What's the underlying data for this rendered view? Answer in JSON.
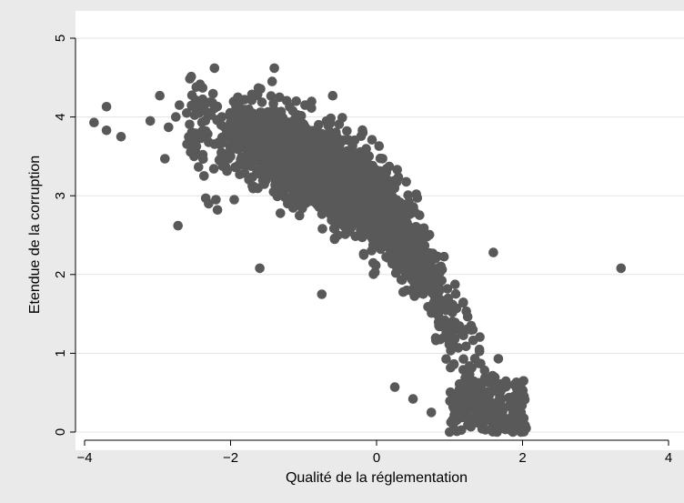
{
  "chart_data": {
    "type": "scatter",
    "xlabel": "Qualité de la réglementation",
    "ylabel": "Etendue de la corruption",
    "xlim": [
      -4,
      4
    ],
    "ylim": [
      0,
      5
    ],
    "xticks": [
      -4,
      -2,
      0,
      2,
      4
    ],
    "yticks": [
      0,
      1,
      2,
      3,
      4,
      5
    ],
    "xtick_labels": [
      "−4",
      "−2",
      "0",
      "2",
      "4"
    ],
    "ytick_labels": [
      "0",
      "1",
      "2",
      "3",
      "4",
      "5"
    ],
    "grid": "horizontal",
    "marker_color": "#595959",
    "series": [
      {
        "points": [
          [
            -3.87,
            3.93
          ],
          [
            -3.7,
            4.13
          ],
          [
            -3.7,
            3.83
          ],
          [
            -3.5,
            3.75
          ],
          [
            -3.1,
            3.95
          ],
          [
            -2.97,
            4.27
          ],
          [
            -2.9,
            3.47
          ],
          [
            -2.85,
            3.87
          ],
          [
            -2.75,
            4.0
          ],
          [
            -2.72,
            2.62
          ],
          [
            -2.7,
            4.15
          ],
          [
            -2.6,
            4.05
          ],
          [
            -2.5,
            3.5
          ],
          [
            -2.47,
            4.38
          ],
          [
            -2.43,
            4.05
          ],
          [
            -2.3,
            2.9
          ],
          [
            -2.22,
            4.62
          ],
          [
            -2.2,
            2.95
          ],
          [
            -2.18,
            2.82
          ],
          [
            -2.12,
            4.0
          ],
          [
            -2.0,
            3.5
          ],
          [
            -1.95,
            2.95
          ],
          [
            -1.9,
            4.25
          ],
          [
            -1.6,
            2.08
          ],
          [
            -1.4,
            4.62
          ],
          [
            -1.43,
            4.45
          ],
          [
            -1.33,
            4.25
          ],
          [
            -1.1,
            4.2
          ],
          [
            -0.98,
            4.15
          ],
          [
            -0.6,
            4.27
          ],
          [
            -0.75,
            1.75
          ],
          [
            0.25,
            0.57
          ],
          [
            0.5,
            0.42
          ],
          [
            0.75,
            0.25
          ],
          [
            1.6,
            2.28
          ],
          [
            3.35,
            2.08
          ],
          [
            2.05,
            0.05
          ],
          [
            1.0,
            0.0
          ],
          [
            1.95,
            0.5
          ],
          [
            1.98,
            0.25
          ]
        ]
      }
    ],
    "trend": [
      [
        -2.6,
        3.95
      ],
      [
        -2.2,
        3.85
      ],
      [
        -1.8,
        3.75
      ],
      [
        -1.4,
        3.6
      ],
      [
        -1.0,
        3.42
      ],
      [
        -0.6,
        3.25
      ],
      [
        -0.2,
        3.02
      ],
      [
        0.2,
        2.72
      ],
      [
        0.5,
        2.32
      ],
      [
        0.8,
        1.85
      ],
      [
        1.1,
        1.3
      ],
      [
        1.4,
        0.75
      ],
      [
        1.7,
        0.28
      ],
      [
        1.95,
        0.02
      ]
    ],
    "cloud_count": 2200,
    "seed": 20240611
  }
}
